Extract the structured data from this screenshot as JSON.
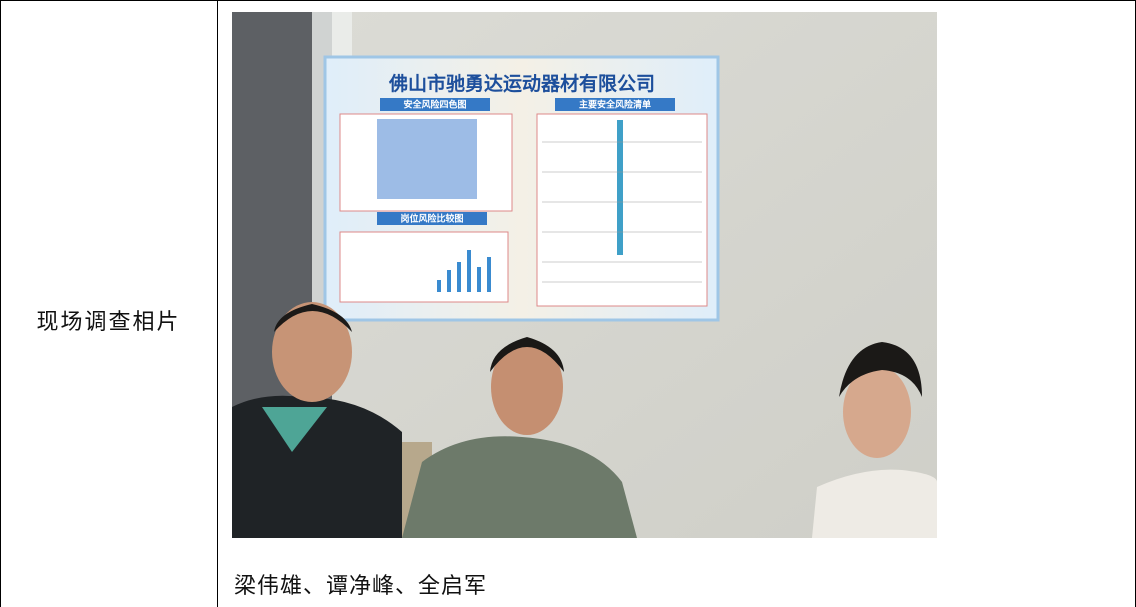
{
  "table": {
    "row_label": "现场调查相片",
    "caption": "梁伟雄、谭净峰、全启军"
  },
  "photo": {
    "poster_title": "佛山市驰勇达运动器材有限公司",
    "poster_sections": [
      "安全风险四色图",
      "主要安全风险清单",
      "岗位风险比较图"
    ]
  }
}
